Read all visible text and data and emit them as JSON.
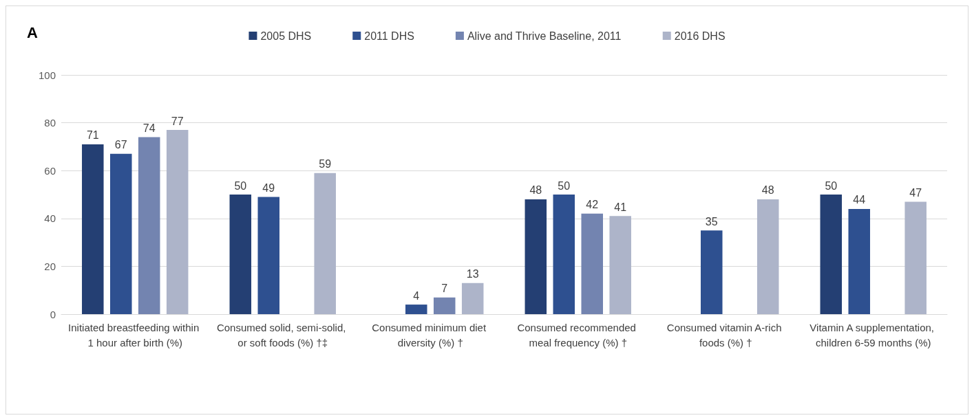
{
  "chart_data": {
    "type": "bar",
    "title": "A",
    "categories": [
      "Initiated breastfeeding within 1 hour after birth (%)",
      "Consumed solid, semi-solid, or soft foods (%) †‡",
      "Consumed minimum diet diversity (%) †",
      "Consumed recommended meal frequency (%) †",
      "Consumed vitamin A-rich foods (%) †",
      "Vitamin A supplementation, children 6-59 months (%)"
    ],
    "series": [
      {
        "name": "2005 DHS",
        "color": "#243f73",
        "values": [
          71,
          50,
          null,
          48,
          null,
          50
        ]
      },
      {
        "name": "2011 DHS",
        "color": "#2e5090",
        "values": [
          67,
          49,
          4,
          50,
          35,
          44
        ]
      },
      {
        "name": "Alive and Thrive Baseline, 2011",
        "color": "#7384b0",
        "values": [
          74,
          null,
          7,
          42,
          null,
          null
        ]
      },
      {
        "name": "2016 DHS",
        "color": "#adb4c9",
        "values": [
          77,
          59,
          13,
          41,
          48,
          47
        ]
      }
    ],
    "ylim": [
      0,
      100
    ],
    "yticks": [
      0,
      20,
      40,
      60,
      80,
      100
    ],
    "grid": "y",
    "legend": "top",
    "data_labels": true
  }
}
